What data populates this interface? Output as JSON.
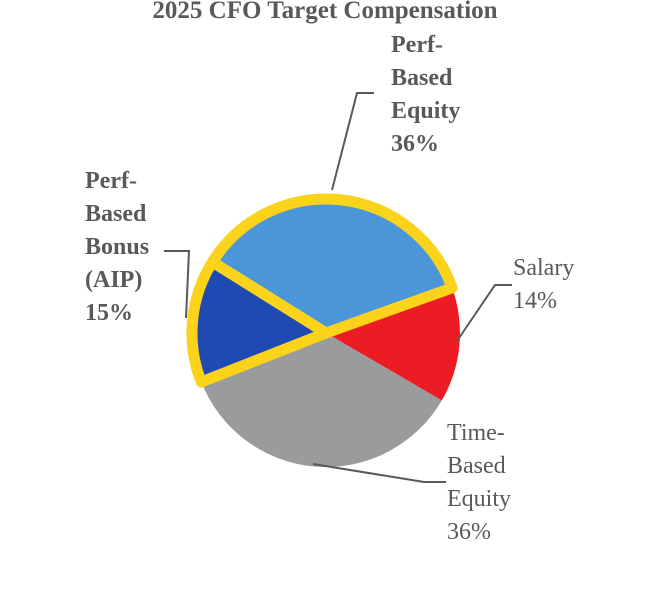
{
  "title": "2025 CFO Target Compensation",
  "chart_data": {
    "type": "pie",
    "title": "2025 CFO Target Compensation",
    "start_angle_deg": -58,
    "direction": "clockwise",
    "highlight_outline_color": "#FBD31B",
    "highlight_outline_width": 11,
    "slices": [
      {
        "label": "Perf-Based Equity",
        "value_pct": 36,
        "color": "#4B96D9",
        "highlighted": true
      },
      {
        "label": "Salary",
        "value_pct": 14,
        "color": "#EC1C24",
        "highlighted": false
      },
      {
        "label": "Time-Based Equity",
        "value_pct": 36,
        "color": "#9A9B9D",
        "highlighted": false
      },
      {
        "label": "Perf-Based Bonus (AIP)",
        "value_pct": 15,
        "color": "#1F4AB3",
        "highlighted": true
      }
    ]
  },
  "callouts": {
    "perf_equity": "Perf-\nBased\nEquity\n36%",
    "perf_bonus": "Perf-\nBased\nBonus\n(AIP)\n15%",
    "salary": "Salary\n14%",
    "time_equity": "Time-\nBased\nEquity\n36%"
  },
  "colors": {
    "text": "#595959",
    "leader_line": "#595959",
    "background": "#FFFFFF"
  }
}
